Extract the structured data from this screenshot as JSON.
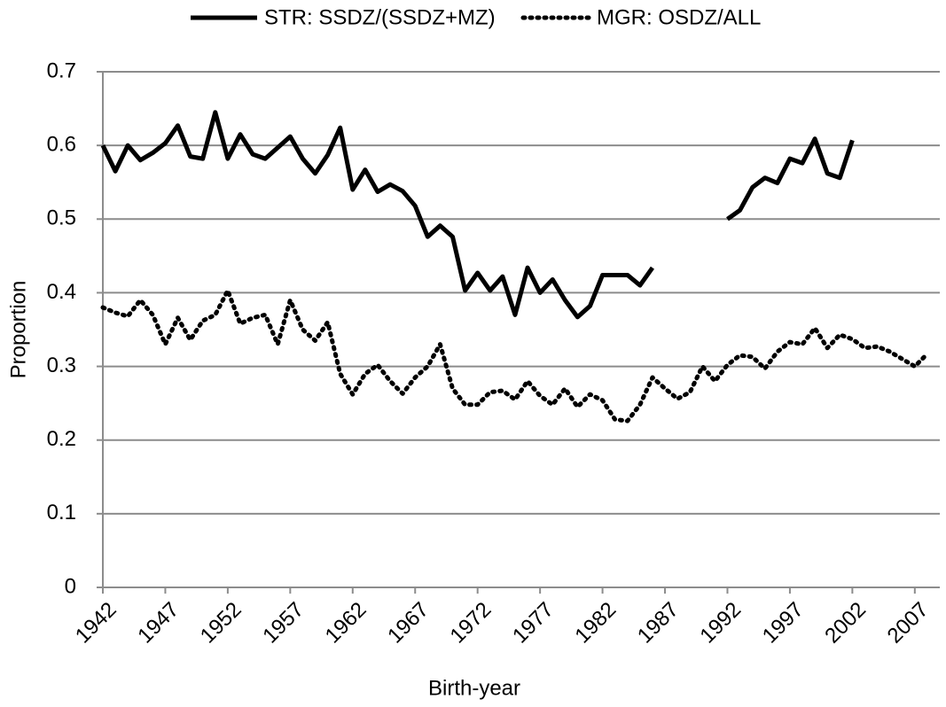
{
  "chart_data": {
    "type": "line",
    "x_label": "Birth-year",
    "y_label": "Proportion",
    "x": [
      1942,
      1943,
      1944,
      1945,
      1946,
      1947,
      1948,
      1949,
      1950,
      1951,
      1952,
      1953,
      1954,
      1955,
      1956,
      1957,
      1958,
      1959,
      1960,
      1961,
      1962,
      1963,
      1964,
      1965,
      1966,
      1967,
      1968,
      1969,
      1970,
      1971,
      1972,
      1973,
      1974,
      1975,
      1976,
      1977,
      1978,
      1979,
      1980,
      1981,
      1982,
      1983,
      1984,
      1985,
      1986,
      1987,
      1988,
      1989,
      1990,
      1991,
      1992,
      1993,
      1994,
      1995,
      1996,
      1997,
      1998,
      1999,
      2000,
      2001,
      2002,
      2003,
      2004,
      2005,
      2006,
      2007,
      2008
    ],
    "series": [
      {
        "name": "STR: SSDZ/(SSDZ+MZ)",
        "color": "#000000",
        "dash": "solid",
        "values": [
          0.6,
          0.565,
          0.6,
          0.58,
          0.59,
          0.603,
          0.627,
          0.585,
          0.582,
          0.645,
          0.582,
          0.615,
          0.588,
          0.582,
          0.597,
          0.612,
          0.582,
          0.562,
          0.587,
          0.624,
          0.54,
          0.567,
          0.537,
          0.547,
          0.538,
          0.518,
          0.476,
          0.491,
          0.476,
          0.403,
          0.427,
          0.403,
          0.422,
          0.37,
          0.434,
          0.4,
          0.418,
          0.39,
          0.367,
          0.382,
          0.424,
          0.424,
          0.424,
          0.41,
          0.434,
          null,
          null,
          null,
          null,
          null,
          0.5,
          0.512,
          0.543,
          0.556,
          0.549,
          0.582,
          0.576,
          0.609,
          0.562,
          0.556,
          0.607,
          null,
          null,
          null,
          null,
          null,
          null
        ]
      },
      {
        "name": "MGR: OSDZ/ALL",
        "color": "#000000",
        "dash": "dotted",
        "values": [
          0.38,
          0.373,
          0.368,
          0.39,
          0.37,
          0.33,
          0.366,
          0.336,
          0.362,
          0.37,
          0.403,
          0.358,
          0.366,
          0.37,
          0.33,
          0.39,
          0.35,
          0.335,
          0.36,
          0.29,
          0.262,
          0.29,
          0.302,
          0.28,
          0.263,
          0.285,
          0.3,
          0.33,
          0.27,
          0.248,
          0.248,
          0.265,
          0.267,
          0.255,
          0.28,
          0.26,
          0.248,
          0.27,
          0.245,
          0.262,
          0.254,
          0.228,
          0.226,
          0.248,
          0.285,
          0.27,
          0.256,
          0.265,
          0.3,
          0.28,
          0.302,
          0.315,
          0.313,
          0.297,
          0.32,
          0.333,
          0.33,
          0.352,
          0.325,
          0.343,
          0.337,
          0.325,
          0.327,
          0.32,
          0.31,
          0.3,
          0.317
        ]
      }
    ],
    "xlim": [
      1942,
      2009
    ],
    "xticks": [
      1942,
      1947,
      1952,
      1957,
      1962,
      1967,
      1972,
      1977,
      1982,
      1987,
      1992,
      1997,
      2002,
      2007
    ],
    "ylim": [
      0,
      0.7
    ],
    "yticks": [
      0,
      0.1,
      0.2,
      0.3,
      0.4,
      0.5,
      0.6,
      0.7
    ],
    "grid": true,
    "legend": "top"
  }
}
